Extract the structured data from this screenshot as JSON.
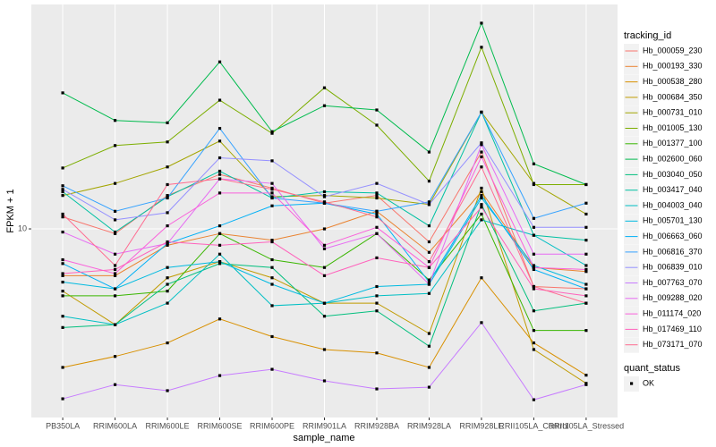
{
  "chart_data": {
    "type": "line",
    "x_label": "sample_name",
    "y_label": "FPKM + 1",
    "log_y": true,
    "grid": true,
    "legend_position": "right",
    "legend_title": "tracking_id",
    "shape_legend_title": "quant_status",
    "shape_legend_labels": [
      "OK"
    ],
    "point_color": "#000000",
    "categories": [
      "PB350LA",
      "RRIM600LA",
      "RRIM600LE",
      "RRIM600SE",
      "RRIM600PE",
      "RRIM901LA",
      "RRIM928BA",
      "RRIM928LA",
      "RRIM928LE",
      "RRII105LA_Control",
      "RRII105LA_Stressed"
    ],
    "ylim": [
      2.97,
      42.4
    ],
    "yticks": [
      10
    ],
    "series": [
      {
        "name": "Hb_000059_230",
        "color": "#F8766D",
        "values": [
          10.8,
          9.7,
          12.4,
          14.2,
          13.0,
          11.8,
          12.4,
          9.2,
          16.4,
          6.9,
          6.8
        ]
      },
      {
        "name": "Hb_000193_330",
        "color": "#EA8331",
        "values": [
          7.4,
          7.4,
          9.0,
          9.7,
          9.3,
          10.0,
          11.2,
          8.6,
          12.7,
          7.8,
          7.6
        ]
      },
      {
        "name": "Hb_000538_280",
        "color": "#D89000",
        "values": [
          4.1,
          4.4,
          4.8,
          5.6,
          5.0,
          4.6,
          4.5,
          4.1,
          7.3,
          4.8,
          3.9
        ]
      },
      {
        "name": "Hb_000684_350",
        "color": "#C09B00",
        "values": [
          6.7,
          5.4,
          7.3,
          8.1,
          7.3,
          6.2,
          6.2,
          5.1,
          13.0,
          4.6,
          3.7
        ]
      },
      {
        "name": "Hb_000731_010",
        "color": "#A3A500",
        "values": [
          12.4,
          13.4,
          14.9,
          17.6,
          12.3,
          12.4,
          12.2,
          11.7,
          21.2,
          13.4,
          11.0
        ]
      },
      {
        "name": "Hb_001005_130",
        "color": "#7CAE00",
        "values": [
          14.8,
          17.1,
          17.5,
          22.9,
          18.5,
          24.8,
          19.5,
          13.6,
          32.2,
          13.3,
          13.3
        ]
      },
      {
        "name": "Hb_001377_100",
        "color": "#39B600",
        "values": [
          6.5,
          6.5,
          6.7,
          9.7,
          8.2,
          7.8,
          9.7,
          7.2,
          11.0,
          5.2,
          5.2
        ]
      },
      {
        "name": "Hb_002600_060",
        "color": "#00BB4E",
        "values": [
          24.0,
          20.1,
          19.8,
          29.3,
          18.7,
          22.1,
          21.5,
          16.4,
          37.6,
          15.2,
          13.3
        ]
      },
      {
        "name": "Hb_003040_050",
        "color": "#00BF7D",
        "values": [
          5.3,
          5.4,
          7.0,
          8.0,
          7.8,
          5.7,
          5.9,
          4.7,
          11.7,
          5.9,
          6.2
        ]
      },
      {
        "name": "Hb_003417_040",
        "color": "#00C1A3",
        "values": [
          12.7,
          9.8,
          12.3,
          14.5,
          12.2,
          12.7,
          12.6,
          10.2,
          21.2,
          9.6,
          9.3
        ]
      },
      {
        "name": "Hb_004003_040",
        "color": "#00BFC4",
        "values": [
          5.7,
          5.4,
          6.2,
          8.5,
          6.1,
          6.2,
          6.5,
          6.6,
          10.6,
          9.6,
          7.9
        ]
      },
      {
        "name": "Hb_005701_130",
        "color": "#00BAE0",
        "values": [
          7.1,
          6.8,
          7.8,
          8.1,
          7.0,
          6.2,
          6.9,
          7.0,
          12.2,
          7.9,
          7.0
        ]
      },
      {
        "name": "Hb_006663_060",
        "color": "#00B0F6",
        "values": [
          8.0,
          6.8,
          9.1,
          10.2,
          11.6,
          11.8,
          11.0,
          7.1,
          12.4,
          7.7,
          6.8
        ]
      },
      {
        "name": "Hb_006816_370",
        "color": "#35A2FF",
        "values": [
          13.2,
          11.2,
          12.2,
          19.1,
          12.2,
          11.8,
          11.2,
          11.9,
          21.2,
          10.7,
          11.8
        ]
      },
      {
        "name": "Hb_006839_010",
        "color": "#9590FF",
        "values": [
          12.9,
          10.6,
          11.1,
          15.8,
          15.5,
          12.3,
          13.4,
          11.7,
          17.4,
          10.1,
          10.1
        ]
      },
      {
        "name": "Hb_007763_070",
        "color": "#C77CFF",
        "values": [
          3.35,
          3.67,
          3.53,
          3.89,
          4.05,
          3.76,
          3.57,
          3.61,
          5.47,
          3.33,
          3.67
        ]
      },
      {
        "name": "Hb_009288_020",
        "color": "#E76BF3",
        "values": [
          9.8,
          8.5,
          9.1,
          13.8,
          13.4,
          8.8,
          9.7,
          7.0,
          17.2,
          8.5,
          8.5
        ]
      },
      {
        "name": "Hb_011174_020",
        "color": "#FA62DB",
        "values": [
          8.2,
          7.5,
          10.2,
          12.6,
          12.6,
          9.0,
          10.1,
          7.8,
          15.9,
          7.8,
          7.7
        ]
      },
      {
        "name": "Hb_017469_110",
        "color": "#FF62BC",
        "values": [
          7.5,
          7.7,
          9.2,
          9.0,
          9.2,
          7.4,
          8.3,
          7.8,
          11.5,
          6.8,
          6.5
        ]
      },
      {
        "name": "Hb_073171_070",
        "color": "#FF6C91",
        "values": [
          11.0,
          7.9,
          13.3,
          13.8,
          12.9,
          11.9,
          10.8,
          8.1,
          14.9,
          6.9,
          6.2
        ]
      }
    ]
  }
}
